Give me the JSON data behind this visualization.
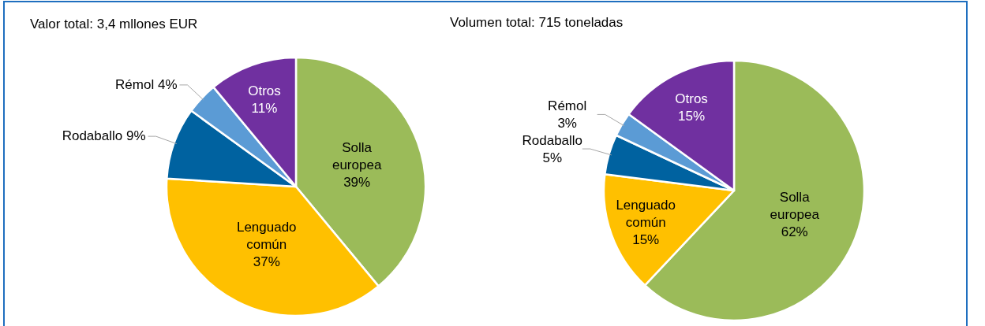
{
  "chart_data": [
    {
      "type": "pie",
      "title": "Valor total: 3,4 mllones EUR",
      "categories": [
        "Solla europea",
        "Lenguado común",
        "Rodaballo",
        "Rémol",
        "Otros"
      ],
      "values": [
        39,
        37,
        9,
        4,
        11
      ],
      "colors": [
        "#9bbb59",
        "#ffc000",
        "#0062a0",
        "#5b9bd5",
        "#7030a0"
      ],
      "data_labels": true,
      "value_labels": [
        "39%",
        "37%",
        "9%",
        "4%",
        "11%"
      ]
    },
    {
      "type": "pie",
      "title": "Volumen total: 715 toneladas",
      "categories": [
        "Solla europea",
        "Lenguado común",
        "Rodaballo",
        "Rémol",
        "Otros"
      ],
      "values": [
        62,
        15,
        5,
        3,
        15
      ],
      "colors": [
        "#9bbb59",
        "#ffc000",
        "#0062a0",
        "#5b9bd5",
        "#7030a0"
      ],
      "data_labels": true,
      "value_labels": [
        "62%",
        "15%",
        "5%",
        "3%",
        "15%"
      ]
    }
  ]
}
